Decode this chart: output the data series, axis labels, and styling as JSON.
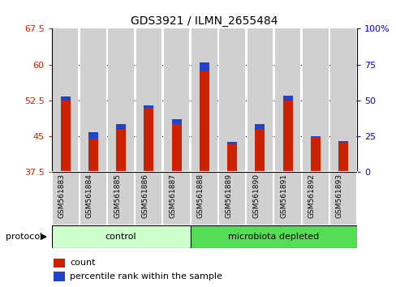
{
  "title": "GDS3921 / ILMN_2655484",
  "samples": [
    "GSM561883",
    "GSM561884",
    "GSM561885",
    "GSM561886",
    "GSM561887",
    "GSM561888",
    "GSM561889",
    "GSM561890",
    "GSM561891",
    "GSM561892",
    "GSM561893"
  ],
  "red_values": [
    52.5,
    44.5,
    46.5,
    51.0,
    47.5,
    60.5,
    43.8,
    46.5,
    52.5,
    45.0,
    44.0
  ],
  "blue_values": [
    53.4,
    45.8,
    47.5,
    51.5,
    48.5,
    58.8,
    43.3,
    47.5,
    53.5,
    44.8,
    43.6
  ],
  "ylim_left": [
    37.5,
    67.5
  ],
  "ylim_right": [
    0,
    100
  ],
  "yticks_left": [
    37.5,
    45.0,
    52.5,
    60.0,
    67.5
  ],
  "yticks_right": [
    0,
    25,
    50,
    75,
    100
  ],
  "ytick_labels_left": [
    "37.5",
    "45",
    "52.5",
    "60",
    "67.5"
  ],
  "ytick_labels_right": [
    "0",
    "25",
    "50",
    "75",
    "100%"
  ],
  "groups": [
    {
      "label": "control",
      "start": 0,
      "end": 5,
      "color": "#ccffcc"
    },
    {
      "label": "microbiota depleted",
      "start": 5,
      "end": 11,
      "color": "#55dd55"
    }
  ],
  "red_color": "#cc2200",
  "blue_color": "#2244cc",
  "bar_bg_color": "#d0d0d0",
  "plot_bg_color": "#ffffff",
  "legend_label_red": "count",
  "legend_label_blue": "percentile rank within the sample",
  "protocol_label": "protocol",
  "bar_width": 0.35
}
